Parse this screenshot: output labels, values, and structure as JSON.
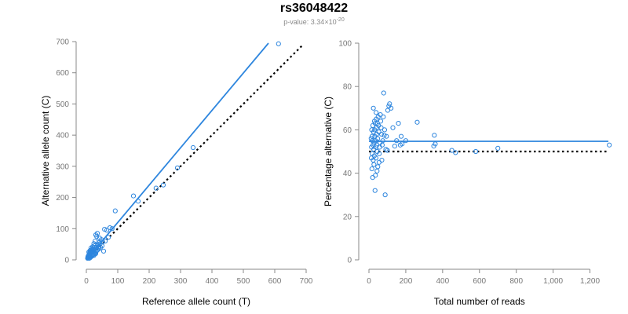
{
  "title": "rs36048422",
  "subtitle": {
    "prefix": "p-value: 3.34×10",
    "exponent": "-20"
  },
  "colors": {
    "series": "#2e86de",
    "reference_line": "#000000",
    "axis": "#888888",
    "tick_text": "#777777"
  },
  "chart_data": [
    {
      "type": "scatter",
      "xlabel": "Reference allele count (T)",
      "ylabel": "Alternative allele count (C)",
      "xlim": [
        0,
        700
      ],
      "ylim": [
        0,
        700
      ],
      "xticks": [
        0,
        100,
        200,
        300,
        400,
        500,
        600,
        700
      ],
      "yticks": [
        0,
        100,
        200,
        300,
        400,
        500,
        600,
        700
      ],
      "grid": false,
      "fit_line": {
        "x": [
          0,
          580
        ],
        "y": [
          0,
          695
        ]
      },
      "reference_line": {
        "x": [
          0,
          690
        ],
        "y": [
          0,
          690
        ],
        "style": "dotted"
      },
      "points": [
        [
          612,
          693
        ],
        [
          340,
          360
        ],
        [
          290,
          295
        ],
        [
          245,
          240
        ],
        [
          222,
          230
        ],
        [
          165,
          188
        ],
        [
          150,
          205
        ],
        [
          92,
          157
        ],
        [
          75,
          103
        ],
        [
          82,
          100
        ],
        [
          65,
          95
        ],
        [
          58,
          98
        ],
        [
          55,
          28
        ],
        [
          48,
          65
        ],
        [
          42,
          70
        ],
        [
          40,
          55
        ],
        [
          38,
          50
        ],
        [
          35,
          85
        ],
        [
          33,
          75
        ],
        [
          30,
          80
        ],
        [
          28,
          60
        ],
        [
          26,
          45
        ],
        [
          25,
          40
        ],
        [
          24,
          52
        ],
        [
          22,
          35
        ],
        [
          21,
          30
        ],
        [
          20,
          42
        ],
        [
          19,
          25
        ],
        [
          18,
          33
        ],
        [
          17,
          28
        ],
        [
          16,
          22
        ],
        [
          15,
          38
        ],
        [
          14,
          20
        ],
        [
          13,
          18
        ],
        [
          12,
          30
        ],
        [
          12,
          15
        ],
        [
          11,
          24
        ],
        [
          10,
          12
        ],
        [
          10,
          20
        ],
        [
          9,
          16
        ],
        [
          8,
          10
        ],
        [
          8,
          25
        ],
        [
          7,
          14
        ],
        [
          7,
          8
        ],
        [
          6,
          12
        ],
        [
          5,
          6
        ],
        [
          5,
          10
        ],
        [
          4,
          5
        ],
        [
          30,
          20
        ],
        [
          22,
          18
        ],
        [
          18,
          12
        ],
        [
          35,
          32
        ],
        [
          45,
          40
        ],
        [
          60,
          60
        ],
        [
          70,
          72
        ],
        [
          50,
          45
        ],
        [
          26,
          28
        ],
        [
          32,
          38
        ],
        [
          40,
          35
        ],
        [
          24,
          14
        ],
        [
          15,
          10
        ],
        [
          20,
          15
        ],
        [
          28,
          22
        ],
        [
          36,
          46
        ],
        [
          44,
          52
        ],
        [
          52,
          58
        ],
        [
          13,
          8
        ],
        [
          11,
          6
        ],
        [
          9,
          5
        ],
        [
          17,
          16
        ],
        [
          23,
          26
        ],
        [
          27,
          33
        ],
        [
          31,
          28
        ],
        [
          39,
          42
        ],
        [
          16,
          30
        ],
        [
          14,
          26
        ],
        [
          12,
          22
        ],
        [
          20,
          36
        ],
        [
          25,
          18
        ],
        [
          34,
          30
        ]
      ]
    },
    {
      "type": "scatter",
      "xlabel": "Total number of reads",
      "ylabel": "Percentage alternative (C)",
      "xlim": [
        0,
        1300
      ],
      "ylim": [
        0,
        100
      ],
      "xticks": [
        0,
        200,
        400,
        600,
        800,
        1000,
        1200
      ],
      "xtick_labels": [
        "0",
        "200",
        "400",
        "600",
        "800",
        "1,000",
        "1,200"
      ],
      "yticks": [
        0,
        20,
        40,
        60,
        80,
        100
      ],
      "grid": false,
      "fit_line": {
        "x": [
          0,
          1300
        ],
        "y": [
          54.7,
          54.7
        ]
      },
      "reference_line": {
        "x": [
          0,
          1300
        ],
        "y": [
          50,
          50
        ],
        "style": "dotted"
      },
      "points": [
        [
          1305,
          53
        ],
        [
          700,
          51.5
        ],
        [
          580,
          50
        ],
        [
          470,
          49.5
        ],
        [
          450,
          50.5
        ],
        [
          360,
          53.5
        ],
        [
          355,
          57.5
        ],
        [
          352,
          52.5
        ],
        [
          262,
          63.5
        ],
        [
          200,
          55
        ],
        [
          180,
          53.5
        ],
        [
          175,
          57
        ],
        [
          170,
          53
        ],
        [
          160,
          63
        ],
        [
          150,
          55
        ],
        [
          140,
          52.5
        ],
        [
          130,
          61
        ],
        [
          120,
          70
        ],
        [
          112,
          72
        ],
        [
          108,
          71
        ],
        [
          102,
          69
        ],
        [
          100,
          50.5
        ],
        [
          95,
          57
        ],
        [
          92,
          51
        ],
        [
          88,
          30
        ],
        [
          85,
          60
        ],
        [
          83,
          57.5
        ],
        [
          80,
          77
        ],
        [
          78,
          66
        ],
        [
          75,
          55
        ],
        [
          72,
          53
        ],
        [
          70,
          46
        ],
        [
          68,
          58
        ],
        [
          66,
          61
        ],
        [
          64,
          64
        ],
        [
          62,
          67
        ],
        [
          60,
          54
        ],
        [
          58,
          52
        ],
        [
          56,
          49
        ],
        [
          55,
          45
        ],
        [
          54,
          59
        ],
        [
          52,
          62
        ],
        [
          50,
          66
        ],
        [
          48,
          43
        ],
        [
          47,
          56
        ],
        [
          46,
          63
        ],
        [
          45,
          50
        ],
        [
          44,
          41
        ],
        [
          43,
          53
        ],
        [
          42,
          58
        ],
        [
          41,
          61
        ],
        [
          40,
          65
        ],
        [
          39,
          68
        ],
        [
          38,
          47
        ],
        [
          37,
          52
        ],
        [
          36,
          55
        ],
        [
          35,
          39
        ],
        [
          34,
          63
        ],
        [
          33,
          32
        ],
        [
          32,
          57
        ],
        [
          31,
          60
        ],
        [
          30,
          64
        ],
        [
          29,
          48
        ],
        [
          28,
          54
        ],
        [
          27,
          44
        ],
        [
          26,
          51
        ],
        [
          25,
          59
        ],
        [
          24,
          70
        ],
        [
          23,
          46
        ],
        [
          22,
          53
        ],
        [
          21,
          62
        ],
        [
          20,
          38
        ],
        [
          19,
          55
        ],
        [
          18,
          49
        ],
        [
          17,
          57
        ],
        [
          16,
          42
        ],
        [
          15,
          60
        ],
        [
          14,
          52
        ],
        [
          13,
          47
        ],
        [
          12,
          56
        ]
      ]
    }
  ]
}
